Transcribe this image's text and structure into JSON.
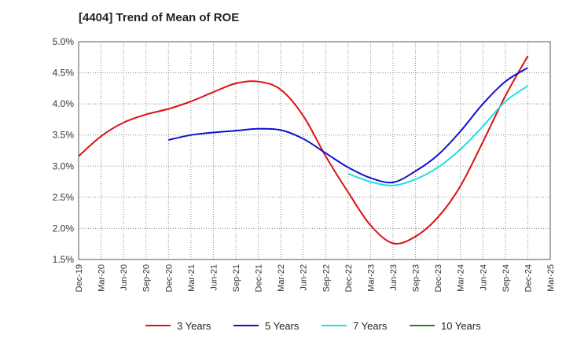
{
  "chart_data": {
    "type": "line",
    "title": "[4404]  Trend of Mean of ROE",
    "xlabel": "",
    "ylabel": "",
    "x_ticks": [
      "Dec-19",
      "Mar-20",
      "Jun-20",
      "Sep-20",
      "Dec-20",
      "Mar-21",
      "Jun-21",
      "Sep-21",
      "Dec-21",
      "Mar-22",
      "Jun-22",
      "Sep-22",
      "Dec-22",
      "Mar-23",
      "Jun-23",
      "Sep-23",
      "Dec-23",
      "Mar-24",
      "Jun-24",
      "Sep-24",
      "Dec-24",
      "Mar-25"
    ],
    "y_ticks": [
      "1.5%",
      "2.0%",
      "2.5%",
      "3.0%",
      "3.5%",
      "4.0%",
      "4.5%",
      "5.0%"
    ],
    "ylim": [
      1.5,
      5.0
    ],
    "y_unit": "%",
    "grid": true,
    "legend_position": "bottom",
    "series": [
      {
        "name": "3 Years",
        "color": "#dd1111",
        "x": [
          "Dec-19",
          "Mar-20",
          "Jun-20",
          "Sep-20",
          "Dec-20",
          "Mar-21",
          "Jun-21",
          "Sep-21",
          "Dec-21",
          "Mar-22",
          "Jun-22",
          "Sep-22",
          "Dec-22",
          "Mar-23",
          "Jun-23",
          "Sep-23",
          "Dec-23",
          "Mar-24",
          "Jun-24",
          "Sep-24",
          "Dec-24"
        ],
        "values": [
          3.16,
          3.48,
          3.7,
          3.83,
          3.92,
          4.04,
          4.19,
          4.33,
          4.36,
          4.23,
          3.81,
          3.16,
          2.58,
          2.05,
          1.76,
          1.87,
          2.18,
          2.68,
          3.39,
          4.13,
          4.77
        ]
      },
      {
        "name": "5 Years",
        "color": "#1111cc",
        "x": [
          "Dec-20",
          "Mar-21",
          "Jun-21",
          "Sep-21",
          "Dec-21",
          "Mar-22",
          "Jun-22",
          "Sep-22",
          "Dec-22",
          "Mar-23",
          "Jun-23",
          "Sep-23",
          "Dec-23",
          "Mar-24",
          "Jun-24",
          "Sep-24",
          "Dec-24"
        ],
        "values": [
          3.42,
          3.5,
          3.54,
          3.57,
          3.6,
          3.58,
          3.44,
          3.21,
          2.98,
          2.81,
          2.74,
          2.92,
          3.18,
          3.56,
          4.0,
          4.36,
          4.58
        ]
      },
      {
        "name": "7 Years",
        "color": "#22dddd",
        "x": [
          "Dec-22",
          "Mar-23",
          "Jun-23",
          "Sep-23",
          "Dec-23",
          "Mar-24",
          "Jun-24",
          "Sep-24",
          "Dec-24"
        ],
        "values": [
          2.88,
          2.75,
          2.69,
          2.79,
          2.98,
          3.27,
          3.64,
          4.04,
          4.29
        ]
      },
      {
        "name": "10 Years",
        "color": "#228822",
        "x": [],
        "values": []
      }
    ]
  }
}
